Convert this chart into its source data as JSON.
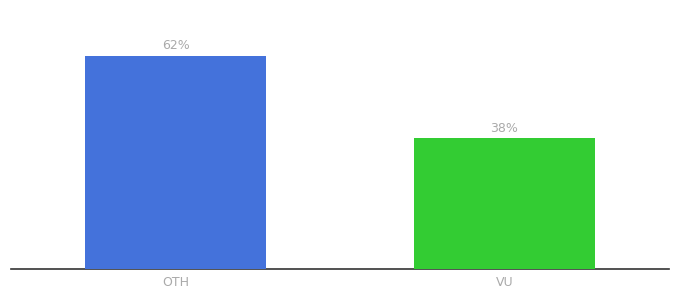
{
  "categories": [
    "OTH",
    "VU"
  ],
  "values": [
    62,
    38
  ],
  "bar_colors": [
    "#4472db",
    "#33cc33"
  ],
  "label_texts": [
    "62%",
    "38%"
  ],
  "background_color": "#ffffff",
  "bar_width": 0.55,
  "xlim": [
    -0.5,
    1.5
  ],
  "ylim": [
    0,
    75
  ],
  "xlabel_fontsize": 9,
  "label_fontsize": 9,
  "label_color": "#aaaaaa",
  "xtick_color": "#aaaaaa",
  "spine_color": "#333333"
}
